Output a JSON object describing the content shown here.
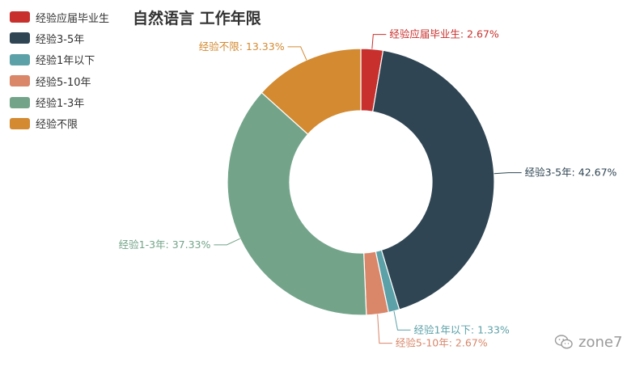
{
  "chart_data": {
    "type": "pie",
    "title": "自然语言 工作年限",
    "donut": true,
    "slices": [
      {
        "label": "经验应届毕业生",
        "value": 2.67,
        "display": "2.67%",
        "color": "#c8302d"
      },
      {
        "label": "经验3-5年",
        "value": 42.67,
        "display": "42.67%",
        "color": "#2f4553"
      },
      {
        "label": "经验1年以下",
        "value": 1.33,
        "display": "1.33%",
        "color": "#5ca1a8"
      },
      {
        "label": "经验5-10年",
        "value": 2.67,
        "display": "2.67%",
        "color": "#d98669"
      },
      {
        "label": "经验1-3年",
        "value": 37.33,
        "display": "37.33%",
        "color": "#73a48a"
      },
      {
        "label": "经验不限",
        "value": 13.33,
        "display": "13.33%",
        "color": "#d38a31"
      }
    ],
    "legend_position": "top-left"
  },
  "watermark": {
    "text": "zone7",
    "icon": "wechat-icon"
  }
}
